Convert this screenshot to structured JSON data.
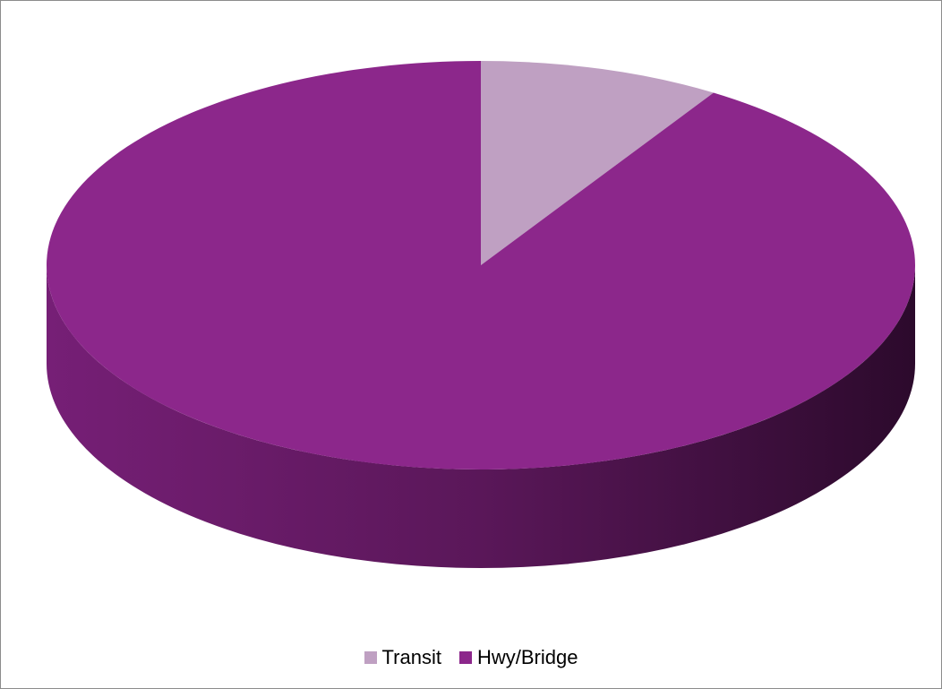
{
  "chart_data": {
    "type": "pie",
    "style": "3d",
    "title": "",
    "categories": [
      "Transit",
      "Hwy/Bridge"
    ],
    "values": [
      0.09,
      0.91
    ],
    "colors": [
      "#bfa0c2",
      "#8c278b"
    ],
    "legend_position": "bottom"
  },
  "legend": {
    "items": [
      {
        "label": "Transit",
        "color": "#bfa0c2"
      },
      {
        "label": "Hwy/Bridge",
        "color": "#8c278b"
      }
    ]
  }
}
